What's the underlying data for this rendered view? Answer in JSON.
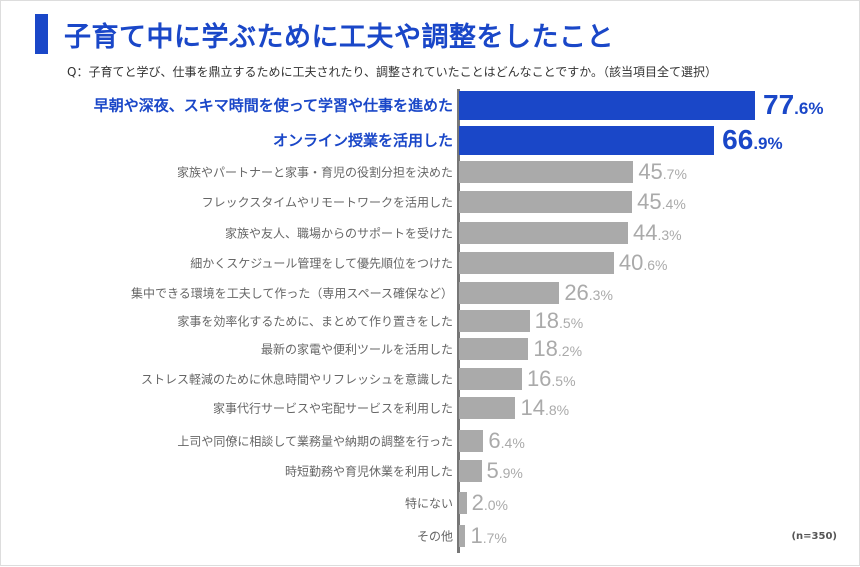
{
  "title": "子育て中に学ぶために工夫や調整をしたこと",
  "question": "Q：子育てと学び、仕事を鼎立するために工夫されたり、調整されていたことはどんなことですか。（該当項目全て選択）",
  "sample_size": "(n=350)",
  "colors": {
    "highlight": "#1a47c8",
    "default": "#aaaaaa"
  },
  "chart_data": {
    "type": "bar",
    "orientation": "horizontal",
    "title": "子育て中に学ぶために工夫や調整をしたこと",
    "unit": "%",
    "xlim": [
      0,
      100
    ],
    "categories": [
      "早朝や深夜、スキマ時間を使って学習や仕事を進めた",
      "オンライン授業を活用した",
      "家族やパートナーと家事・育児の役割分担を決めた",
      "フレックスタイムやリモートワークを活用した",
      "家族や友人、職場からのサポートを受けた",
      "細かくスケジュール管理をして優先順位をつけた",
      "集中できる環境を工夫して作った（専用スペース確保など）",
      "家事を効率化するために、まとめて作り置きをした",
      "最新の家電や便利ツールを活用した",
      "ストレス軽減のために休息時間やリフレッシュを意識した",
      "家事代行サービスや宅配サービスを利用した",
      "上司や同僚に相談して業務量や納期の調整を行った",
      "時短勤務や育児休業を利用した",
      "特にない",
      "その他"
    ],
    "values": [
      77.6,
      66.9,
      45.7,
      45.4,
      44.3,
      40.6,
      26.3,
      18.5,
      18.2,
      16.5,
      14.8,
      6.4,
      5.9,
      2.0,
      1.7
    ],
    "highlighted": [
      true,
      true,
      false,
      false,
      false,
      false,
      false,
      false,
      false,
      false,
      false,
      false,
      false,
      false,
      false
    ]
  }
}
